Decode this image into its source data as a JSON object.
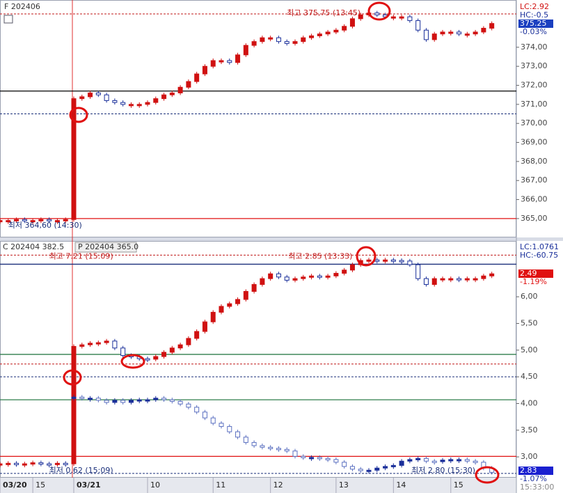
{
  "chart_data": [
    {
      "type": "candle",
      "title": "F 202406",
      "xlim": [
        0,
        63
      ],
      "ylim": [
        364.85,
        376.3
      ],
      "yticks": [
        {
          "value": 365,
          "label": "365,00"
        },
        {
          "value": 366,
          "label": "366,00"
        },
        {
          "value": 367,
          "label": "367,00"
        },
        {
          "value": 368,
          "label": "368,00"
        },
        {
          "value": 369,
          "label": "369,00"
        },
        {
          "value": 370,
          "label": "370,00"
        },
        {
          "value": 371,
          "label": "371,00"
        },
        {
          "value": 372,
          "label": "372,00"
        },
        {
          "value": 373,
          "label": "373,00"
        },
        {
          "value": 374,
          "label": "374,00"
        }
      ],
      "series": [
        {
          "color_up": "#d01010",
          "color_down": "#1a2f9a",
          "values": [
            364.9,
            364.9,
            364.95,
            364.9,
            364.9,
            364.95,
            364.9,
            364.9,
            364.95,
            371.3,
            371.4,
            371.6,
            371.5,
            371.2,
            371.1,
            371.0,
            371.0,
            371.0,
            371.1,
            371.3,
            371.5,
            371.6,
            371.9,
            372.2,
            372.6,
            373.0,
            373.3,
            373.3,
            373.2,
            373.6,
            374.1,
            374.3,
            374.5,
            374.5,
            374.3,
            374.2,
            374.3,
            374.5,
            374.6,
            374.7,
            374.8,
            374.9,
            375.1,
            375.5,
            375.7,
            375.8,
            375.7,
            375.6,
            375.6,
            375.6,
            375.4,
            374.9,
            374.4,
            374.7,
            374.8,
            374.8,
            374.7,
            374.7,
            374.8,
            375.0,
            375.25
          ]
        }
      ],
      "lines": [
        {
          "value": 375.75,
          "color": "#c01818",
          "dash": true
        },
        {
          "value": 371.7,
          "color": "#000000",
          "dash": false
        },
        {
          "value": 370.5,
          "color": "#1a2f7a",
          "dash": true
        },
        {
          "value": 365.0,
          "color": "#e01010",
          "dash": false
        }
      ],
      "annotations": [
        {
          "text": "최고 375,75 (13:45)",
          "x": 44,
          "y": 375.75,
          "color": "#c01818",
          "align": "end"
        },
        {
          "text": "최저 364,60 (14:30)",
          "x": 1,
          "y": 364.6,
          "color": "#1a2f7a",
          "align": "start"
        }
      ],
      "side_labels": [
        {
          "text": "LC:2.92",
          "color": "#d01010",
          "boxed": false
        },
        {
          "text": "HC:-0.5",
          "color": "#1a2f9a",
          "boxed": false
        },
        {
          "text": "375.25",
          "color": "#1a3fc0",
          "boxed": true
        },
        {
          "text": "-0.03%",
          "color": "#1a2f9a",
          "boxed": false
        }
      ]
    },
    {
      "type": "candle",
      "titles": [
        "C 202404 382.5",
        "P 202404 365.0"
      ],
      "xlim": [
        0,
        63
      ],
      "ylim": [
        2.61,
        7.02
      ],
      "yticks": [
        {
          "value": 3,
          "label": "3,00"
        },
        {
          "value": 3.5,
          "label": "3,50"
        },
        {
          "value": 4,
          "label": "4,00"
        },
        {
          "value": 4.5,
          "label": "4,50"
        },
        {
          "value": 5,
          "label": "5,00"
        },
        {
          "value": 5.5,
          "label": "5,50"
        },
        {
          "value": 6,
          "label": "6,00"
        }
      ],
      "xticks": [
        {
          "value": 0,
          "label": "03/20"
        },
        4,
        {
          "value": 9,
          "label": "03/21"
        },
        18,
        26,
        33,
        41,
        48,
        55
      ],
      "xtick_labels": [
        "03/20",
        "15",
        "03/21",
        "10",
        "11",
        "12",
        "13",
        "14",
        "15"
      ],
      "series": [
        {
          "color_up": "#d01010",
          "color_down": "#1a2f9a",
          "values": [
            2.87,
            2.88,
            2.86,
            2.87,
            2.89,
            2.87,
            2.86,
            2.88,
            2.87,
            5.07,
            5.1,
            5.13,
            5.14,
            5.17,
            5.04,
            4.9,
            4.88,
            4.84,
            4.83,
            4.88,
            4.96,
            5.04,
            5.1,
            5.22,
            5.35,
            5.53,
            5.71,
            5.82,
            5.87,
            5.95,
            6.1,
            6.23,
            6.34,
            6.43,
            6.37,
            6.31,
            6.34,
            6.37,
            6.39,
            6.38,
            6.39,
            6.44,
            6.5,
            6.6,
            6.68,
            6.69,
            6.68,
            6.69,
            6.68,
            6.67,
            6.6,
            6.34,
            6.23,
            6.34,
            6.34,
            6.34,
            6.33,
            6.34,
            6.34,
            6.39,
            6.43
          ]
        },
        {
          "color_up": "#1a2f9a",
          "color_down": "#5a6fc0",
          "values": [
            null,
            null,
            null,
            null,
            null,
            null,
            null,
            null,
            null,
            4.12,
            4.1,
            4.1,
            4.06,
            4.02,
            4.06,
            4.02,
            4.06,
            4.07,
            4.07,
            4.1,
            4.07,
            4.04,
            3.99,
            3.93,
            3.84,
            3.73,
            3.63,
            3.57,
            3.47,
            3.37,
            3.27,
            3.21,
            3.18,
            3.16,
            3.14,
            3.11,
            3.01,
            2.99,
            2.99,
            2.97,
            2.95,
            2.9,
            2.82,
            2.77,
            2.74,
            2.75,
            2.79,
            2.82,
            2.84,
            2.92,
            2.95,
            2.97,
            2.92,
            2.91,
            2.94,
            2.95,
            2.95,
            2.92,
            2.9,
            2.79,
            2.71
          ]
        }
      ],
      "lines": [
        {
          "value": 6.78,
          "color": "#c01818",
          "dash": true
        },
        {
          "value": 6.61,
          "color": "#1a2f7a",
          "dash": false
        },
        {
          "value": 4.92,
          "color": "#2e7d4a",
          "dash": false
        },
        {
          "value": 4.74,
          "color": "#c01818",
          "dash": true
        },
        {
          "value": 4.5,
          "color": "#1a2f7a",
          "dash": true
        },
        {
          "value": 4.07,
          "color": "#2e7d4a",
          "dash": false
        },
        {
          "value": 3.01,
          "color": "#e01010",
          "dash": false
        },
        {
          "value": 2.69,
          "color": "#1a2f7a",
          "dash": true
        }
      ],
      "annotations": [
        {
          "text": "최고 7.21 (15:09)",
          "x": 6,
          "y": 6.74,
          "color": "#c01818",
          "align": "start"
        },
        {
          "text": "최고 2.85 (13:33)",
          "x": 43,
          "y": 6.74,
          "color": "#c01818",
          "align": "end"
        },
        {
          "text": "최저 0.62 (15:09)",
          "x": 6,
          "y": 2.73,
          "color": "#1a2f7a",
          "align": "start"
        },
        {
          "text": "최저 2.80 (15:30)",
          "x": 58,
          "y": 2.73,
          "color": "#1a2f7a",
          "align": "end"
        }
      ],
      "side_labels": [
        {
          "text": "LC:1.0761",
          "color": "#1a2f9a",
          "boxed": false
        },
        {
          "text": "HC:-60.75",
          "color": "#1a2f9a",
          "boxed": false
        },
        {
          "text": "2.49",
          "color": "#e01010",
          "boxed": true
        },
        {
          "text": "-1.19%",
          "color": "#e01010",
          "boxed": false
        },
        {
          "text": "2.83",
          "color": "#1a20d0",
          "boxed": true
        },
        {
          "text": "-1.07%",
          "color": "#1a2f9a",
          "boxed": false
        },
        {
          "text": "15:33:00",
          "color": "#888888",
          "boxed": false
        }
      ]
    }
  ]
}
